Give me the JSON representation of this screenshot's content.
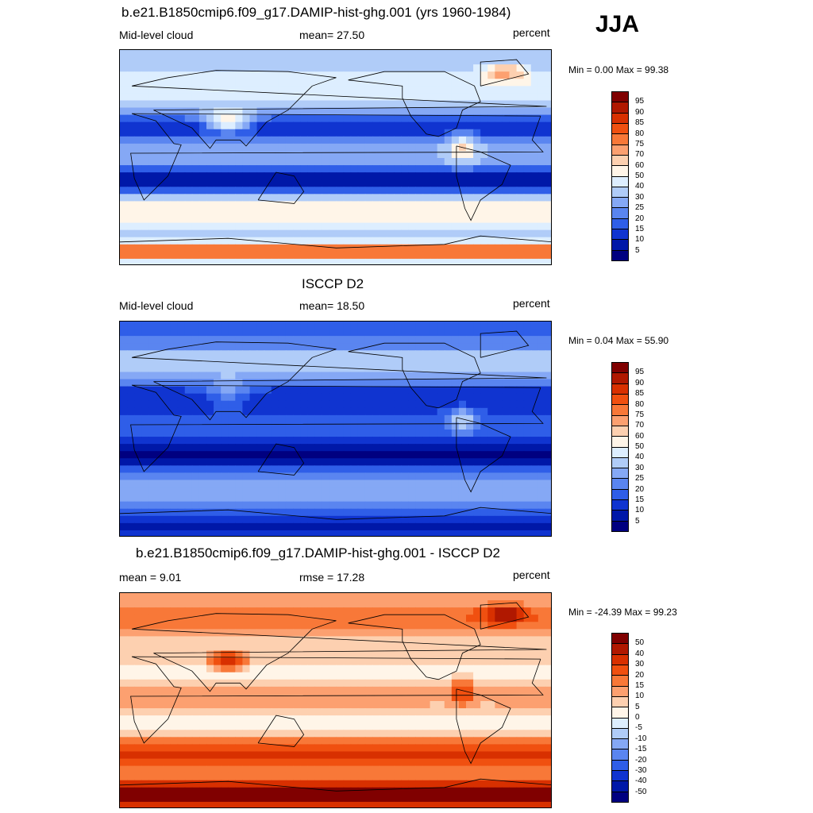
{
  "season_label": "JJA",
  "panels": [
    {
      "title": "b.e21.B1850cmip6.f09_g17.DAMIP-hist-ghg.001 (yrs 1960-1984)",
      "left_label": "Mid-level cloud",
      "center_label": "mean=  27.50",
      "right_label": "percent",
      "minmax": "Min =   0.00 Max =  99.38",
      "palette": "abs",
      "field": "model"
    },
    {
      "title": "ISCCP D2",
      "left_label": "Mid-level cloud",
      "center_label": "mean=  18.50",
      "right_label": "percent",
      "minmax": "Min =   0.04 Max =  55.90",
      "palette": "abs",
      "field": "obs"
    },
    {
      "title": "b.e21.B1850cmip6.f09_g17.DAMIP-hist-ghg.001 - ISCCP D2",
      "left_label": "mean =   9.01",
      "center_label": "rmse =  17.28",
      "right_label": "percent",
      "minmax": "Min = -24.39 Max =  99.23",
      "palette": "diff",
      "field": "diff"
    }
  ],
  "colorbars": {
    "abs": {
      "levels": [
        "95",
        "90",
        "85",
        "80",
        "75",
        "70",
        "60",
        "50",
        "40",
        "30",
        "25",
        "20",
        "15",
        "10",
        "5"
      ],
      "colors": [
        "#800000",
        "#b01800",
        "#d83000",
        "#f05010",
        "#f87838",
        "#fca070",
        "#fdd0b0",
        "#fff5e8",
        "#ddeeff",
        "#b0ccf8",
        "#85a8f5",
        "#5a85f0",
        "#2f5ee8",
        "#1034d0",
        "#0018a8",
        "#000080"
      ]
    },
    "diff": {
      "levels": [
        "50",
        "40",
        "30",
        "20",
        "15",
        "10",
        "5",
        "0",
        "-5",
        "-10",
        "-15",
        "-20",
        "-30",
        "-40",
        "-50"
      ],
      "colors": [
        "#800000",
        "#b01800",
        "#d83000",
        "#f05010",
        "#f87838",
        "#fca070",
        "#fdd0b0",
        "#fff5e8",
        "#ddeeff",
        "#b0ccf8",
        "#85a8f5",
        "#5a85f0",
        "#2f5ee8",
        "#1034d0",
        "#0018a8",
        "#000080"
      ]
    }
  }
}
